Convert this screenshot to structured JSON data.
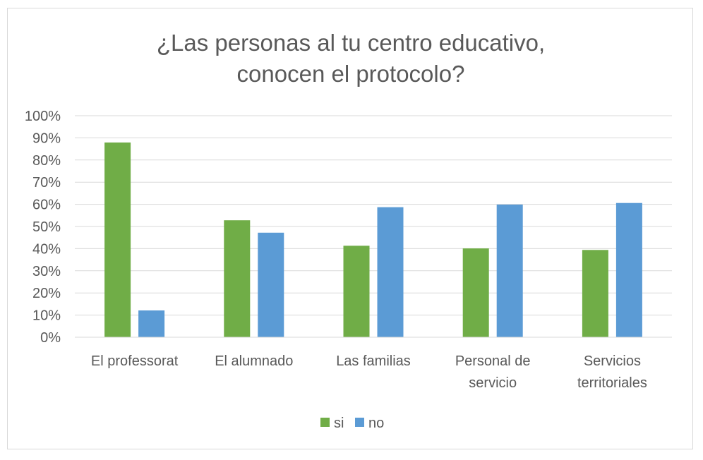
{
  "chart_data": {
    "type": "bar",
    "title": "¿Las personas al tu centro educativo, conocen el protocolo?",
    "title_lines": [
      "¿Las personas al tu centro educativo,",
      "conocen el protocolo?"
    ],
    "categories": [
      "El professorat",
      "El alumnado",
      "Las familias",
      "Personal de servicio",
      "Servicios territoriales"
    ],
    "category_lines": [
      [
        "El professorat"
      ],
      [
        "El alumnado"
      ],
      [
        "Las familias"
      ],
      [
        "Personal de",
        "servicio"
      ],
      [
        "Servicios",
        "territoriales"
      ]
    ],
    "series": [
      {
        "name": "si",
        "color": "#70ad47",
        "values": [
          87.9,
          52.8,
          41.3,
          40.1,
          39.4
        ]
      },
      {
        "name": "no",
        "color": "#5b9bd5",
        "values": [
          12.1,
          47.2,
          58.7,
          59.9,
          60.6
        ]
      }
    ],
    "yticks": [
      "0%",
      "10%",
      "20%",
      "30%",
      "40%",
      "50%",
      "60%",
      "70%",
      "80%",
      "90%",
      "100%"
    ],
    "ylim": [
      0,
      100
    ],
    "xlabel": "",
    "ylabel": "",
    "grid": true,
    "legend_position": "bottom"
  }
}
